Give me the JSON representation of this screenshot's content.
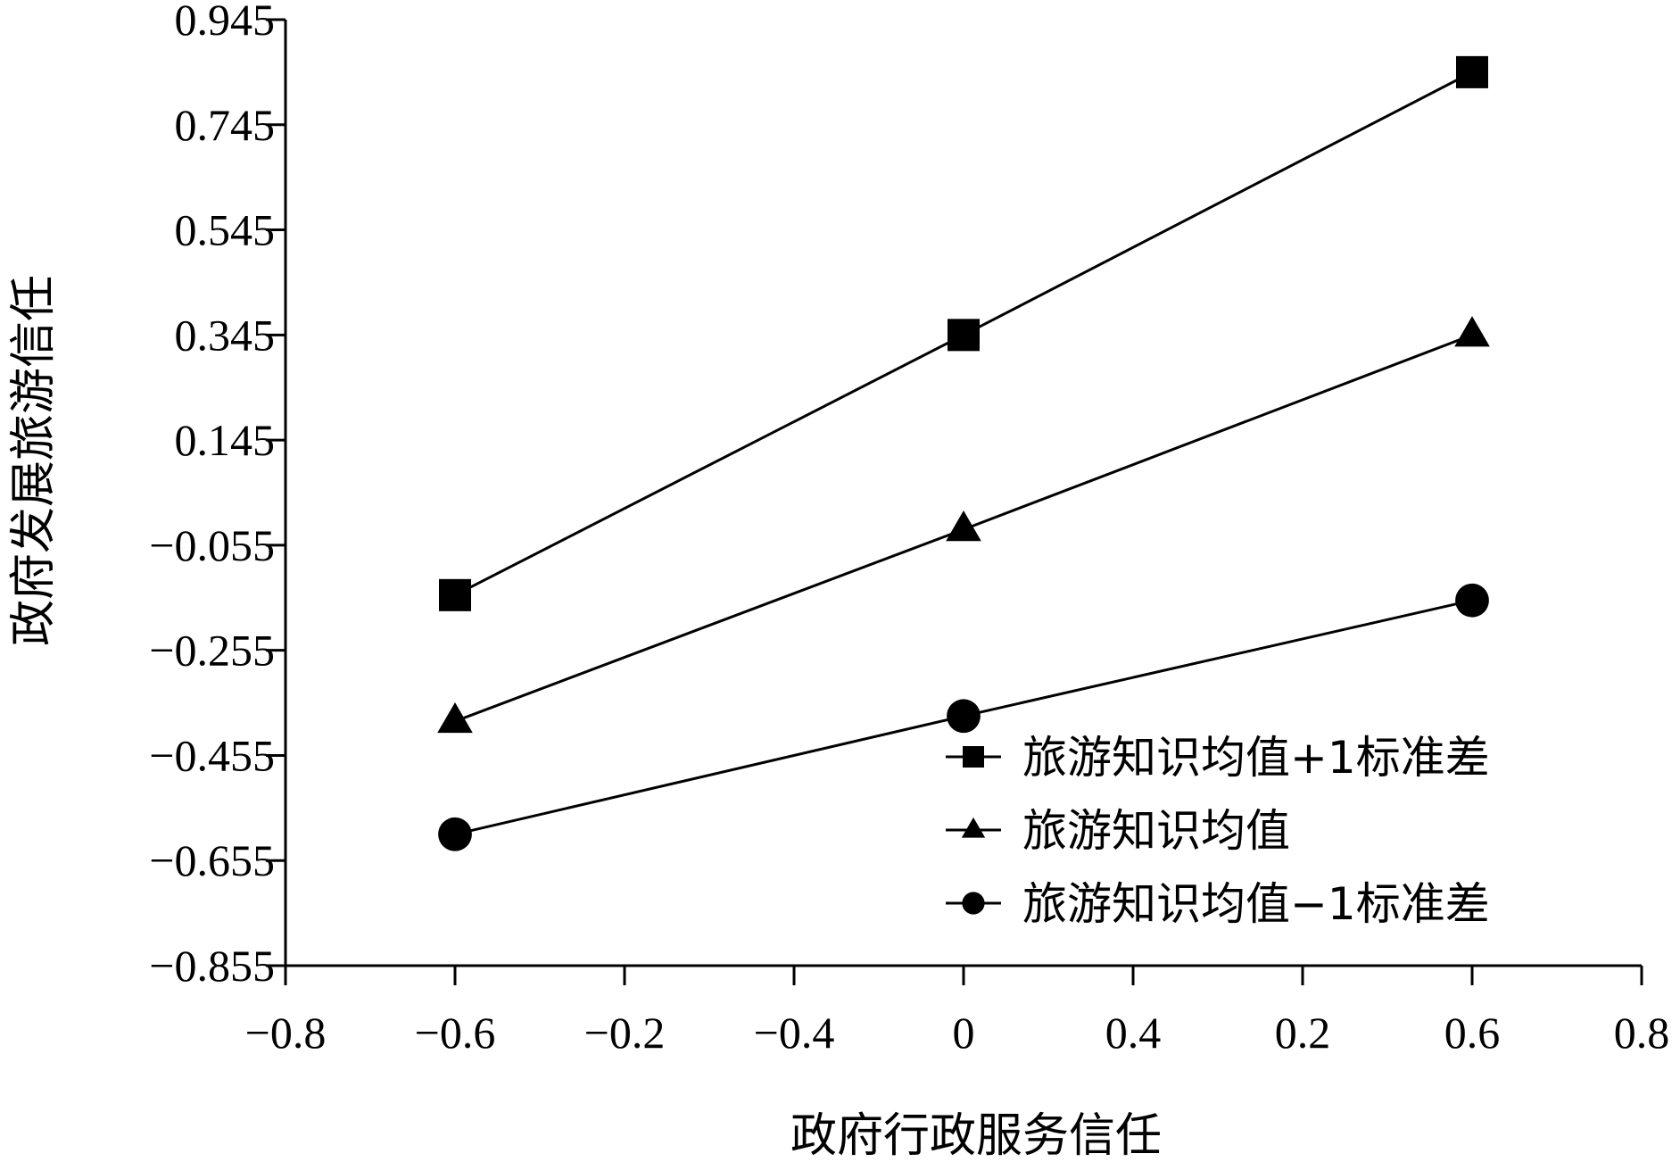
{
  "chart_data": {
    "type": "line",
    "title": "",
    "xlabel": "政府行政服务信任",
    "ylabel": "政府发展旅游信任",
    "x_tick_labels": [
      "−0.8",
      "−0.6",
      "−0.2",
      "−0.4",
      "0",
      "0.4",
      "0.2",
      "0.6",
      "0.8"
    ],
    "y_tick_labels": [
      "0.945",
      "0.745",
      "0.545",
      "0.345",
      "0.145",
      "−0.055",
      "−0.255",
      "−0.455",
      "−0.655",
      "−0.855"
    ],
    "xlim": [
      -0.8,
      0.8
    ],
    "ylim": [
      -0.855,
      0.945
    ],
    "grid": false,
    "legend_position": "bottom-right",
    "series": [
      {
        "name": "旅游知识均值+1标准差",
        "marker": "square",
        "x": [
          -0.6,
          0.0,
          0.6
        ],
        "y": [
          -0.15,
          0.345,
          0.845
        ]
      },
      {
        "name": "旅游知识均值",
        "marker": "triangle",
        "x": [
          -0.6,
          0.0,
          0.6
        ],
        "y": [
          -0.39,
          -0.025,
          0.345
        ]
      },
      {
        "name": "旅游知识均值−1标准差",
        "marker": "circle",
        "x": [
          -0.6,
          0.0,
          0.6
        ],
        "y": [
          -0.605,
          -0.38,
          -0.16
        ]
      }
    ]
  }
}
